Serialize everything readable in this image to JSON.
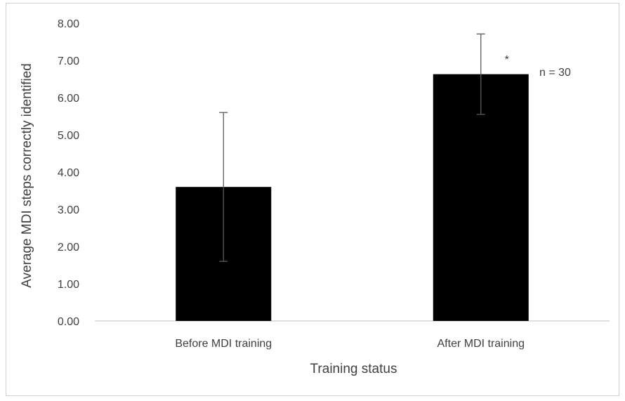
{
  "chart_data": {
    "type": "bar",
    "title": "",
    "xlabel": "Training status",
    "ylabel": "Average MDI steps correctly identified",
    "categories": [
      "Before MDI training",
      "After MDI training"
    ],
    "values": [
      3.6,
      6.63
    ],
    "error": [
      2.0,
      1.08
    ],
    "ylim": [
      0,
      8
    ],
    "yticks": [
      0,
      1,
      2,
      3,
      4,
      5,
      6,
      7,
      8
    ],
    "ytick_labels": [
      "0.00",
      "1.00",
      "2.00",
      "3.00",
      "4.00",
      "5.00",
      "6.00",
      "7.00",
      "8.00"
    ],
    "bar_color": "#000000",
    "grid": false,
    "legend": "none",
    "annotations": {
      "significance": "*",
      "sample_size": "n = 30"
    }
  }
}
